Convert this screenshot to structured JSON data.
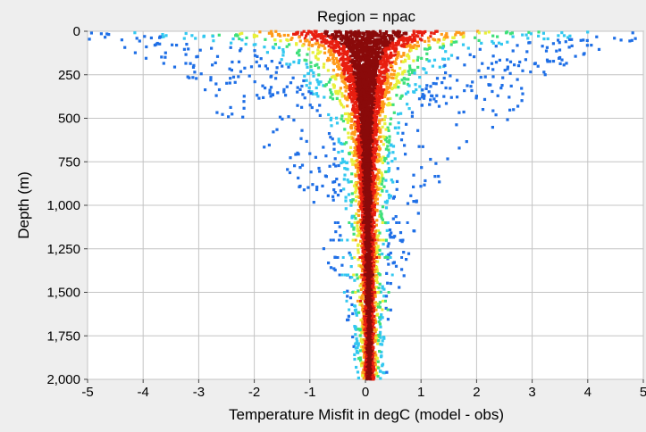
{
  "chart_data": {
    "type": "heatmap",
    "title": "Region = npac",
    "xlabel": "Temperature Misfit in degC (model - obs)",
    "ylabel": "Depth (m)",
    "xlim": [
      -5,
      5
    ],
    "ylim": [
      0,
      2000
    ],
    "y_inverted": true,
    "grid": true,
    "x_ticks": [
      -5,
      -4,
      -3,
      -2,
      -1,
      0,
      1,
      2,
      3,
      4,
      5
    ],
    "x_tick_labels": [
      "-5",
      "-4",
      "-3",
      "-2",
      "-1",
      "0",
      "1",
      "2",
      "3",
      "4",
      "5"
    ],
    "y_ticks": [
      0,
      250,
      500,
      750,
      1000,
      1250,
      1500,
      1750,
      2000
    ],
    "y_tick_labels": [
      "0",
      "250",
      "500",
      "750",
      "1,000",
      "1,250",
      "1,500",
      "1,750",
      "2,000"
    ],
    "colorscale": [
      "#1f6fe6",
      "#33c8f0",
      "#3ee07a",
      "#e8f03a",
      "#ff9a1a",
      "#e81e10",
      "#8a0a0a"
    ],
    "density_profile": {
      "depth": [
        0,
        50,
        100,
        250,
        500,
        750,
        1000,
        1250,
        1500,
        1750,
        2000
      ],
      "center": [
        0,
        0,
        0,
        0,
        0.02,
        0.03,
        0.04,
        0.05,
        0.06,
        0.07,
        0.07
      ],
      "core_halfwidth": [
        1.4,
        0.9,
        0.55,
        0.35,
        0.2,
        0.15,
        0.12,
        0.1,
        0.09,
        0.08,
        0.08
      ],
      "outer_halfwidth": [
        5.0,
        5.0,
        4.3,
        3.3,
        2.6,
        1.6,
        1.0,
        0.8,
        0.55,
        0.3,
        0.25
      ]
    }
  }
}
